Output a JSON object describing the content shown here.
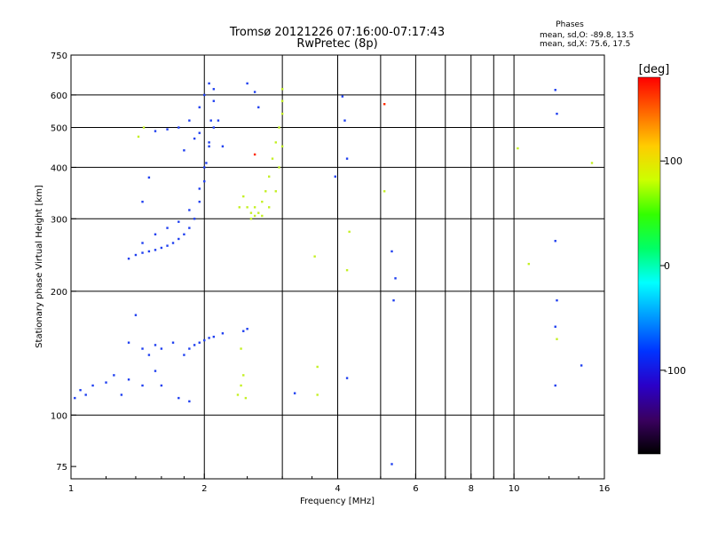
{
  "header": {
    "title_line1": "Tromsø 20121226 07:16:00-07:17:43",
    "title_line2": "RwPretec (8p)",
    "stats_title": "Phases",
    "stats_line1": "mean, sd,O: -89.8, 13.5",
    "stats_line2": "mean, sd,X:  75.6, 17.5"
  },
  "chart_data": {
    "type": "scatter",
    "xlabel": "Frequency [MHz]",
    "ylabel": "Stationary phase Virtual Height [km]",
    "xscale": "log",
    "yscale": "log",
    "xlim": [
      1,
      16
    ],
    "ylim": [
      70,
      750
    ],
    "x_ticks": [
      1,
      2,
      4,
      6,
      8,
      10,
      16
    ],
    "x_ticklabels": [
      "1",
      "2",
      "4",
      "6",
      "8",
      "10",
      "16"
    ],
    "y_ticks": [
      75,
      100,
      200,
      300,
      400,
      500,
      600,
      750
    ],
    "y_ticklabels": [
      "75",
      "100",
      "200",
      "300",
      "400",
      "500",
      "600",
      "750"
    ],
    "x_minor_grid": [
      3,
      5,
      7,
      9
    ],
    "y_grid": [
      100,
      200,
      300,
      400,
      500,
      600
    ],
    "grid": true,
    "colorbar": {
      "label": "[deg]",
      "range": [
        -180,
        180
      ],
      "ticks": [
        100,
        0,
        -100
      ],
      "ticklabels": [
        "100",
        "0",
        "-100"
      ],
      "colors": [
        "#000000",
        "#3a0060",
        "#2a00c8",
        "#0033ff",
        "#0099ff",
        "#00ffff",
        "#00ff66",
        "#33ff00",
        "#ccff00",
        "#ffcc00",
        "#ff6600",
        "#ff0000"
      ]
    },
    "series": [
      {
        "values": [
          [
            1.35,
            240
          ],
          [
            1.4,
            245
          ],
          [
            1.45,
            248
          ],
          [
            1.5,
            250
          ],
          [
            1.55,
            252
          ],
          [
            1.6,
            255
          ],
          [
            1.65,
            258
          ],
          [
            1.7,
            262
          ],
          [
            1.75,
            268
          ],
          [
            1.8,
            275
          ],
          [
            1.85,
            285
          ],
          [
            1.9,
            300
          ],
          [
            1.95,
            330
          ],
          [
            2.0,
            370
          ],
          [
            2.02,
            410
          ],
          [
            2.05,
            460
          ],
          [
            2.07,
            520
          ],
          [
            2.1,
            580
          ],
          [
            2.1,
            620
          ],
          [
            1.45,
            262
          ],
          [
            1.55,
            275
          ],
          [
            1.65,
            285
          ],
          [
            1.75,
            295
          ],
          [
            1.85,
            315
          ],
          [
            1.95,
            355
          ],
          [
            2.0,
            400
          ],
          [
            2.05,
            450
          ],
          [
            2.1,
            500
          ],
          [
            1.45,
            330
          ],
          [
            1.5,
            378
          ],
          [
            1.55,
            490
          ],
          [
            1.65,
            495
          ],
          [
            1.75,
            500
          ],
          [
            1.85,
            520
          ],
          [
            1.95,
            560
          ],
          [
            2.0,
            600
          ],
          [
            2.05,
            640
          ],
          [
            1.8,
            440
          ],
          [
            1.9,
            470
          ],
          [
            1.95,
            485
          ],
          [
            2.15,
            520
          ],
          [
            2.2,
            450
          ],
          [
            2.6,
            610
          ],
          [
            2.65,
            560
          ],
          [
            2.5,
            640
          ],
          [
            4.1,
            595
          ],
          [
            4.15,
            520
          ],
          [
            4.2,
            420
          ],
          [
            3.95,
            380
          ],
          [
            5.3,
            250
          ],
          [
            5.4,
            215
          ],
          [
            5.35,
            190
          ],
          [
            12.4,
            617
          ],
          [
            12.5,
            540
          ],
          [
            12.4,
            265
          ],
          [
            12.5,
            190
          ],
          [
            12.4,
            164
          ],
          [
            12.4,
            118
          ],
          [
            14.2,
            132
          ],
          [
            1.4,
            175
          ],
          [
            1.35,
            150
          ],
          [
            1.45,
            145
          ],
          [
            1.5,
            140
          ],
          [
            1.55,
            148
          ],
          [
            1.6,
            145
          ],
          [
            1.7,
            150
          ],
          [
            1.8,
            140
          ],
          [
            1.85,
            145
          ],
          [
            1.9,
            148
          ],
          [
            1.95,
            150
          ],
          [
            2.0,
            152
          ],
          [
            2.05,
            154
          ],
          [
            2.1,
            155
          ],
          [
            2.2,
            158
          ],
          [
            2.45,
            160
          ],
          [
            2.5,
            162
          ],
          [
            1.02,
            110
          ],
          [
            1.05,
            115
          ],
          [
            1.08,
            112
          ],
          [
            1.12,
            118
          ],
          [
            1.2,
            120
          ],
          [
            1.25,
            125
          ],
          [
            1.3,
            112
          ],
          [
            1.35,
            122
          ],
          [
            1.45,
            118
          ],
          [
            1.55,
            128
          ],
          [
            1.6,
            118
          ],
          [
            1.75,
            110
          ],
          [
            1.85,
            108
          ],
          [
            4.2,
            123
          ],
          [
            5.3,
            76
          ],
          [
            3.2,
            113
          ]
        ]
      },
      {
        "values": [
          [
            2.45,
            340
          ],
          [
            2.5,
            320
          ],
          [
            2.55,
            310
          ],
          [
            2.6,
            305
          ],
          [
            2.65,
            310
          ],
          [
            2.7,
            330
          ],
          [
            2.75,
            350
          ],
          [
            2.8,
            380
          ],
          [
            2.85,
            420
          ],
          [
            2.9,
            460
          ],
          [
            2.95,
            500
          ],
          [
            3.0,
            540
          ],
          [
            3.0,
            580
          ],
          [
            3.0,
            620
          ],
          [
            2.55,
            300
          ],
          [
            2.6,
            320
          ],
          [
            2.7,
            305
          ],
          [
            2.8,
            320
          ],
          [
            2.9,
            350
          ],
          [
            2.95,
            400
          ],
          [
            3.0,
            450
          ],
          [
            1.42,
            475
          ],
          [
            1.46,
            500
          ],
          [
            2.4,
            320
          ],
          [
            2.38,
            112
          ],
          [
            2.42,
            118
          ],
          [
            2.45,
            125
          ],
          [
            2.48,
            110
          ],
          [
            2.42,
            145
          ],
          [
            12.5,
            153
          ],
          [
            4.25,
            279
          ],
          [
            5.1,
            350
          ],
          [
            3.55,
            243
          ],
          [
            3.6,
            131
          ],
          [
            3.6,
            112
          ],
          [
            4.2,
            225
          ],
          [
            10.2,
            445
          ],
          [
            10.8,
            233
          ],
          [
            15.0,
            410
          ]
        ]
      },
      {
        "values": [
          [
            5.1,
            570
          ],
          [
            2.6,
            430
          ]
        ]
      }
    ]
  }
}
